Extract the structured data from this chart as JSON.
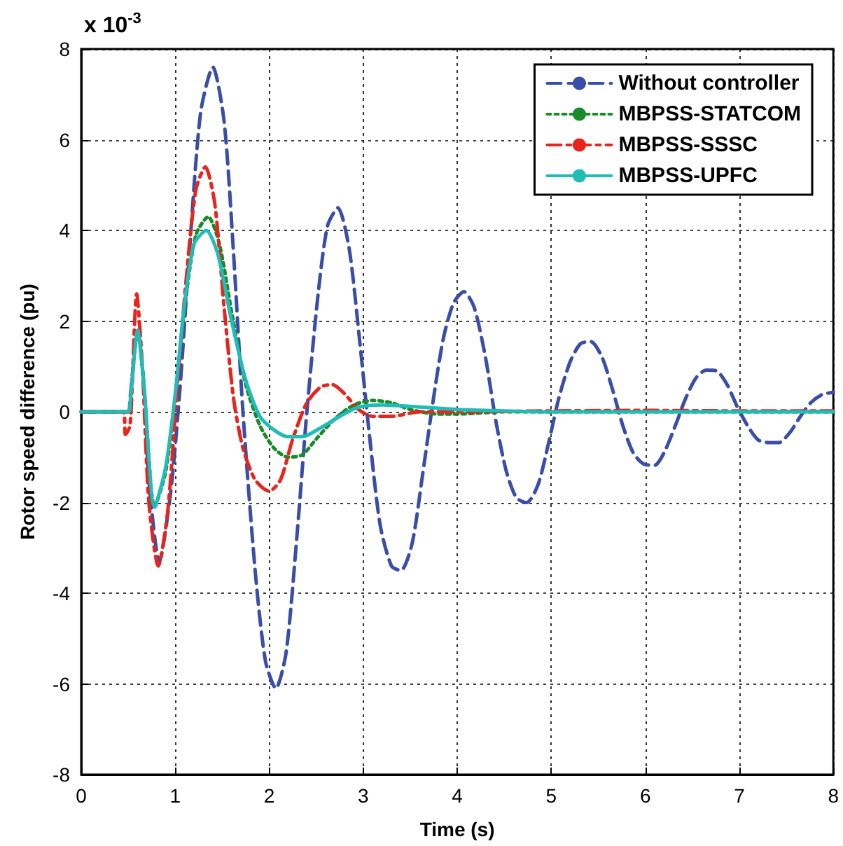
{
  "chart_data": {
    "type": "line",
    "xlabel": "Time (s)",
    "ylabel": "Rotor speed difference (pu)",
    "annotations": [
      "x 10$^{-3}$"
    ],
    "xlim": [
      0,
      8
    ],
    "xticks": [
      0,
      1,
      2,
      3,
      4,
      5,
      6,
      7,
      8
    ],
    "ylim": [
      -8,
      8
    ],
    "yticks": [
      -8,
      -6,
      -4,
      -2,
      0,
      2,
      4,
      6,
      8
    ],
    "grid": true,
    "legend": "top right",
    "marker": "none",
    "series": [
      {
        "name": "Without controller",
        "color": "#3a4ea8",
        "line_style": "dashed",
        "x": [
          0,
          0.5,
          0.52,
          0.6,
          0.67,
          0.72,
          0.83,
          0.95,
          1.05,
          1.15,
          1.27,
          1.4,
          1.52,
          1.62,
          1.72,
          1.85,
          1.96,
          2.07,
          2.18,
          2.3,
          2.4,
          2.52,
          2.62,
          2.73,
          2.85,
          2.96,
          3.07,
          3.18,
          3.3,
          3.4,
          3.52,
          3.63,
          3.74,
          3.85,
          3.96,
          4.07,
          4.18,
          4.3,
          4.41,
          4.52,
          4.63,
          4.74,
          4.86,
          4.97,
          5.08,
          5.2,
          5.31,
          5.42,
          5.54,
          5.65,
          5.76,
          5.87,
          5.98,
          6.1,
          6.2,
          6.32,
          6.43,
          6.54,
          6.65,
          6.76,
          6.87,
          6.98,
          7.1,
          7.2,
          7.31,
          7.42,
          7.54,
          7.65,
          7.76,
          7.88,
          8
        ],
        "values": [
          0,
          0,
          0.3,
          1.8,
          0.5,
          -1.5,
          -3.3,
          -1.8,
          0.5,
          3.5,
          6.6,
          7.6,
          6.4,
          3.5,
          0,
          -3.5,
          -5.5,
          -6.1,
          -5.3,
          -2.6,
          0,
          2.6,
          4.1,
          4.5,
          3.6,
          1.6,
          -0.6,
          -2.5,
          -3.4,
          -3.5,
          -2.9,
          -1.4,
          0.2,
          1.6,
          2.4,
          2.65,
          2.3,
          1.2,
          -0.2,
          -1.3,
          -1.9,
          -2,
          -1.6,
          -0.7,
          0.3,
          1.1,
          1.5,
          1.55,
          1.2,
          0.5,
          -0.3,
          -0.9,
          -1.15,
          -1.18,
          -0.9,
          -0.3,
          0.3,
          0.75,
          0.92,
          0.9,
          0.6,
          0.1,
          -0.35,
          -0.62,
          -0.68,
          -0.68,
          -0.45,
          -0.1,
          0.2,
          0.38,
          0.43
        ]
      },
      {
        "name": "MBPSS-STATCOM",
        "color": "#1a8a2a",
        "line_style": "dotted",
        "x": [
          0,
          0.5,
          0.52,
          0.6,
          0.67,
          0.78,
          0.9,
          1,
          1.1,
          1.22,
          1.35,
          1.47,
          1.6,
          1.75,
          1.9,
          2.05,
          2.2,
          2.35,
          2.5,
          2.7,
          2.9,
          3.1,
          3.3,
          3.5,
          3.8,
          4,
          4.5,
          8
        ],
        "values": [
          0,
          0,
          0.2,
          1.8,
          0.5,
          -2.1,
          -1.3,
          0.3,
          2.3,
          3.9,
          4.3,
          3.7,
          2.2,
          0.6,
          -0.3,
          -0.8,
          -1,
          -0.95,
          -0.6,
          -0.15,
          0.15,
          0.25,
          0.2,
          0.05,
          -0.05,
          -0.05,
          0,
          0
        ]
      },
      {
        "name": "MBPSS-SSSC",
        "color": "#e8241e",
        "line_style": "dashdot",
        "x": [
          0,
          0.45,
          0.47,
          0.52,
          0.59,
          0.65,
          0.72,
          0.82,
          0.92,
          1.02,
          1.12,
          1.22,
          1.32,
          1.42,
          1.52,
          1.62,
          1.72,
          1.85,
          2,
          2.12,
          2.25,
          2.4,
          2.55,
          2.67,
          2.8,
          2.95,
          3.1,
          3.3,
          3.6,
          4,
          5,
          6,
          7,
          8
        ],
        "values": [
          0,
          0,
          -0.5,
          -0.3,
          2.6,
          1,
          -2,
          -3.4,
          -2.2,
          0.5,
          3,
          4.9,
          5.4,
          4.6,
          2.3,
          0.3,
          -0.8,
          -1.5,
          -1.75,
          -1.5,
          -0.6,
          0.2,
          0.55,
          0.6,
          0.4,
          0.05,
          -0.1,
          -0.1,
          0,
          0,
          0.02,
          0.03,
          0.02,
          0.02
        ]
      },
      {
        "name": "MBPSS-UPFC",
        "color": "#1fbcb8",
        "line_style": "solid",
        "x": [
          0,
          0.5,
          0.52,
          0.6,
          0.67,
          0.78,
          0.9,
          1,
          1.1,
          1.2,
          1.33,
          1.45,
          1.6,
          1.75,
          1.9,
          2.05,
          2.2,
          2.35,
          2.55,
          2.75,
          2.95,
          3.2,
          3.5,
          4,
          4.5,
          5,
          8
        ],
        "values": [
          0,
          0,
          0.2,
          1.8,
          0.5,
          -2.1,
          -1.2,
          0.4,
          2.4,
          3.7,
          4,
          3.5,
          2,
          0.7,
          -0.1,
          -0.4,
          -0.55,
          -0.55,
          -0.35,
          -0.1,
          0.1,
          0.15,
          0.12,
          0.05,
          0.02,
          0,
          0
        ]
      }
    ]
  }
}
